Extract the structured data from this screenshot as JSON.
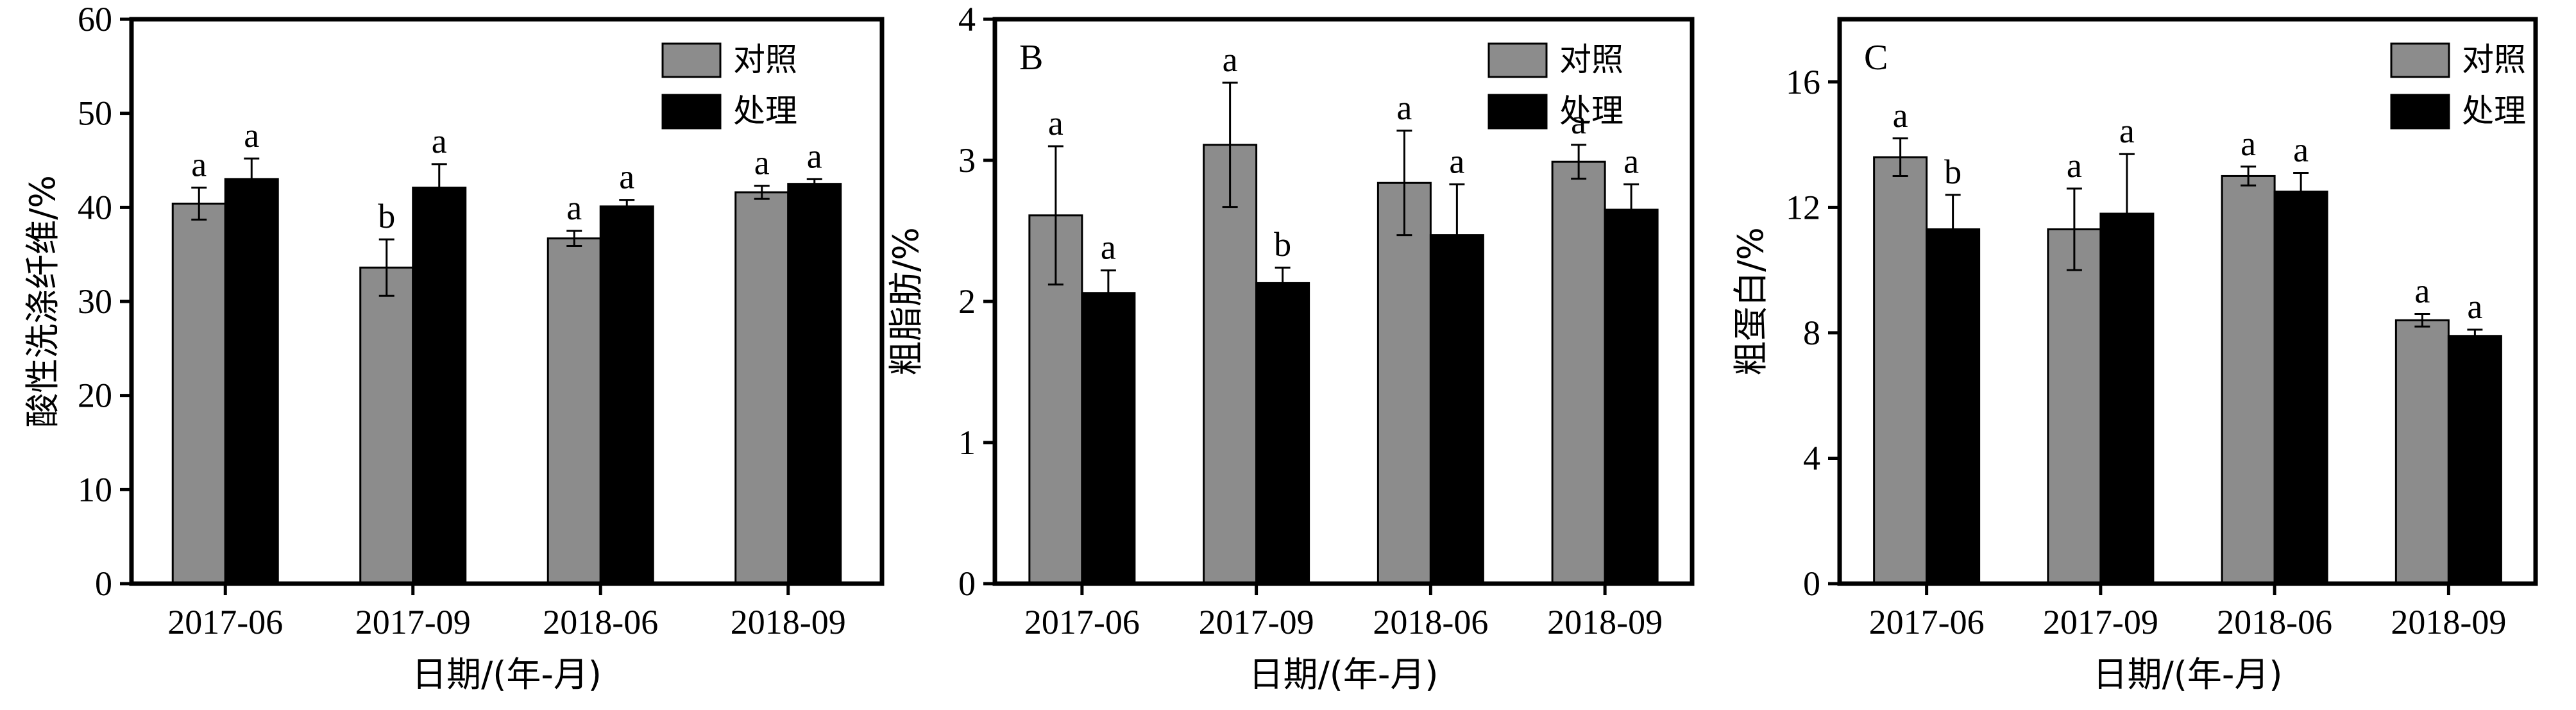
{
  "chart_data": [
    {
      "type": "bar",
      "panel_label": "",
      "categories": [
        "2017-06",
        "2017-09",
        "2018-06",
        "2018-09"
      ],
      "xlabel": "日期/(年-月)",
      "ylabel": "酸性洗涤纤维/%",
      "ylim": [
        0,
        60
      ],
      "yticks": [
        0,
        10,
        20,
        30,
        40,
        50,
        60
      ],
      "legend_position": "top-right",
      "series": [
        {
          "name": "对照",
          "color": "#8c8c8c",
          "values": [
            40.4,
            33.6,
            36.7,
            41.6
          ],
          "errors": [
            1.7,
            3.0,
            0.8,
            0.7
          ],
          "labels": [
            "a",
            "b",
            "a",
            "a"
          ]
        },
        {
          "name": "处理",
          "color": "#000000",
          "values": [
            43.0,
            42.1,
            40.1,
            42.5
          ],
          "errors": [
            2.2,
            2.5,
            0.7,
            0.5
          ],
          "labels": [
            "a",
            "a",
            "a",
            "a"
          ]
        }
      ]
    },
    {
      "type": "bar",
      "panel_label": "B",
      "categories": [
        "2017-06",
        "2017-09",
        "2018-06",
        "2018-09"
      ],
      "xlabel": "日期/(年-月)",
      "ylabel": "粗脂肪/%",
      "ylim": [
        0,
        4
      ],
      "yticks": [
        0,
        1,
        2,
        3,
        4
      ],
      "legend_position": "top-right",
      "series": [
        {
          "name": "对照",
          "color": "#8c8c8c",
          "values": [
            2.61,
            3.11,
            2.84,
            2.99
          ],
          "errors": [
            0.49,
            0.44,
            0.37,
            0.12
          ],
          "labels": [
            "a",
            "a",
            "a",
            "a"
          ]
        },
        {
          "name": "处理",
          "color": "#000000",
          "values": [
            2.06,
            2.13,
            2.47,
            2.65
          ],
          "errors": [
            0.16,
            0.11,
            0.36,
            0.18
          ],
          "labels": [
            "a",
            "b",
            "a",
            "a"
          ]
        }
      ]
    },
    {
      "type": "bar",
      "panel_label": "C",
      "categories": [
        "2017-06",
        "2017-09",
        "2018-06",
        "2018-09"
      ],
      "xlabel": "日期/(年-月)",
      "ylabel": "粗蛋白/%",
      "ylim": [
        0,
        18
      ],
      "yticks": [
        0,
        4,
        8,
        12,
        16
      ],
      "legend_position": "top-right",
      "series": [
        {
          "name": "对照",
          "color": "#8c8c8c",
          "values": [
            13.6,
            11.3,
            13.0,
            8.4
          ],
          "errors": [
            0.6,
            1.3,
            0.3,
            0.2
          ],
          "labels": [
            "a",
            "a",
            "a",
            "a"
          ]
        },
        {
          "name": "处理",
          "color": "#000000",
          "values": [
            11.3,
            11.8,
            12.5,
            7.9
          ],
          "errors": [
            1.1,
            1.9,
            0.6,
            0.2
          ],
          "labels": [
            "b",
            "a",
            "a",
            "a"
          ]
        }
      ]
    }
  ]
}
